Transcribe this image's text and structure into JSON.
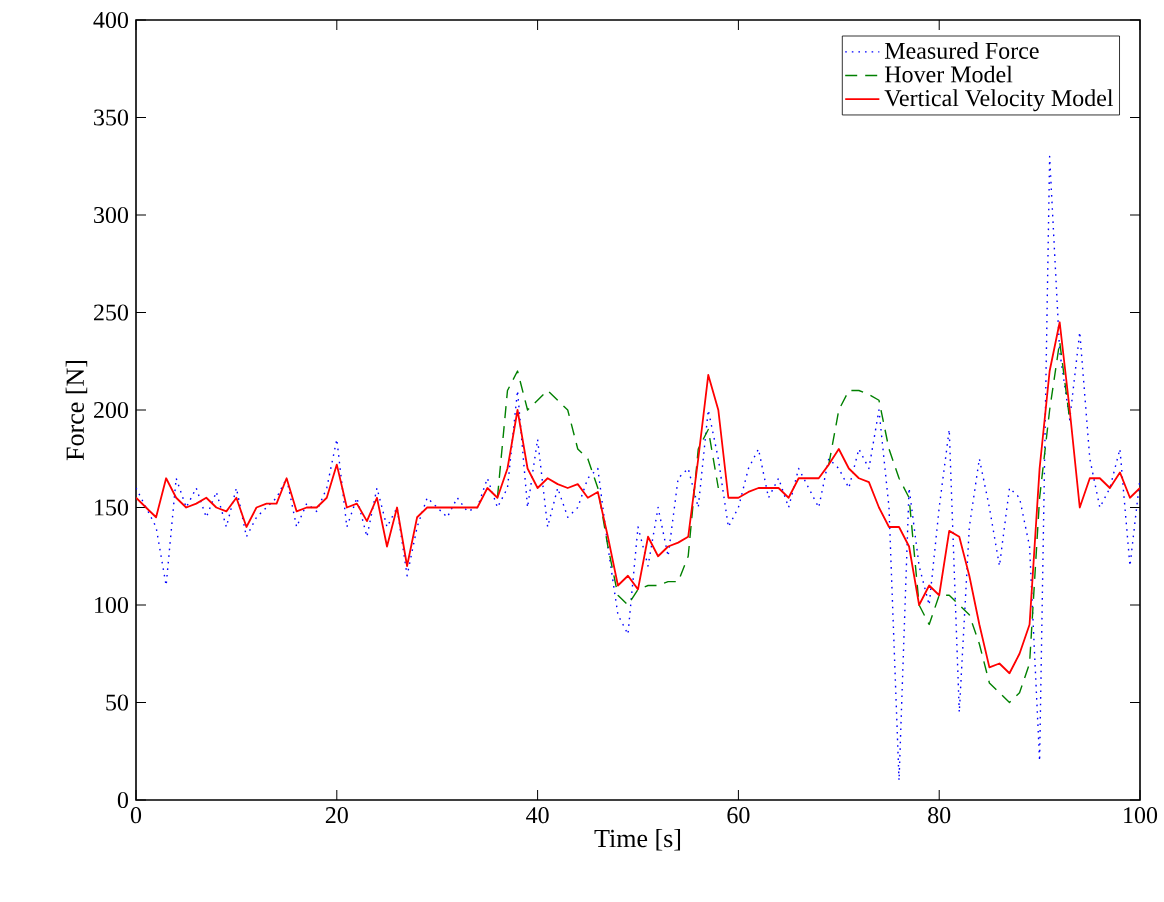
{
  "chart_data": {
    "type": "line",
    "xlabel": "Time [s]",
    "ylabel": "Force [N]",
    "xlim": [
      0,
      100
    ],
    "ylim": [
      0,
      400
    ],
    "xticks": [
      0,
      20,
      40,
      60,
      80,
      100
    ],
    "yticks": [
      0,
      50,
      100,
      150,
      200,
      250,
      300,
      350,
      400
    ],
    "grid": false,
    "legend": "top right",
    "x": [
      0,
      1,
      2,
      3,
      4,
      5,
      6,
      7,
      8,
      9,
      10,
      11,
      12,
      13,
      14,
      15,
      16,
      17,
      18,
      19,
      20,
      21,
      22,
      23,
      24,
      25,
      26,
      27,
      28,
      29,
      30,
      31,
      32,
      33,
      34,
      35,
      36,
      37,
      38,
      39,
      40,
      41,
      42,
      43,
      44,
      45,
      46,
      47,
      48,
      49,
      50,
      51,
      52,
      53,
      54,
      55,
      56,
      57,
      58,
      59,
      60,
      61,
      62,
      63,
      64,
      65,
      66,
      67,
      68,
      69,
      70,
      71,
      72,
      73,
      74,
      75,
      76,
      77,
      78,
      79,
      80,
      81,
      82,
      83,
      84,
      85,
      86,
      87,
      88,
      89,
      90,
      91,
      92,
      93,
      94,
      95,
      96,
      97,
      98,
      99,
      100
    ],
    "series": [
      {
        "name": "Measured Force",
        "color": "#0000ff",
        "line_style": "dotted",
        "values": [
          160,
          150,
          140,
          110,
          165,
          150,
          160,
          145,
          158,
          140,
          160,
          135,
          145,
          150,
          155,
          165,
          140,
          152,
          148,
          160,
          185,
          140,
          155,
          135,
          160,
          140,
          150,
          115,
          140,
          155,
          150,
          145,
          155,
          148,
          150,
          165,
          150,
          160,
          210,
          150,
          185,
          140,
          160,
          145,
          150,
          165,
          170,
          130,
          95,
          85,
          140,
          120,
          150,
          125,
          165,
          170,
          150,
          200,
          175,
          140,
          150,
          170,
          180,
          155,
          165,
          150,
          170,
          160,
          150,
          175,
          170,
          160,
          180,
          170,
          200,
          150,
          10,
          160,
          120,
          100,
          150,
          190,
          45,
          140,
          175,
          150,
          120,
          160,
          155,
          130,
          20,
          330,
          230,
          195,
          240,
          175,
          150,
          160,
          180,
          120,
          165
        ]
      },
      {
        "name": "Hover Model",
        "color": "#008000",
        "line_style": "dashed",
        "values": [
          null,
          null,
          null,
          null,
          null,
          null,
          null,
          null,
          null,
          null,
          null,
          null,
          null,
          null,
          null,
          null,
          null,
          null,
          null,
          null,
          null,
          null,
          null,
          null,
          null,
          null,
          null,
          null,
          null,
          null,
          null,
          null,
          null,
          null,
          null,
          null,
          155,
          210,
          220,
          200,
          205,
          210,
          205,
          200,
          180,
          175,
          160,
          130,
          105,
          100,
          108,
          110,
          110,
          112,
          112,
          125,
          180,
          190,
          160,
          null,
          null,
          null,
          null,
          null,
          null,
          null,
          null,
          null,
          null,
          172,
          200,
          210,
          210,
          208,
          205,
          180,
          165,
          155,
          100,
          90,
          105,
          105,
          100,
          95,
          80,
          60,
          55,
          50,
          55,
          70,
          155,
          200,
          235,
          195,
          null,
          null,
          null,
          null,
          null,
          null,
          null
        ]
      },
      {
        "name": "Vertical Velocity Model",
        "color": "#ff0000",
        "line_style": "solid",
        "values": [
          155,
          150,
          145,
          165,
          155,
          150,
          152,
          155,
          150,
          148,
          155,
          140,
          150,
          152,
          152,
          165,
          148,
          150,
          150,
          155,
          172,
          150,
          152,
          143,
          155,
          130,
          150,
          120,
          145,
          150,
          150,
          150,
          150,
          150,
          150,
          160,
          155,
          170,
          200,
          170,
          160,
          165,
          162,
          160,
          162,
          155,
          158,
          135,
          110,
          115,
          108,
          135,
          125,
          130,
          132,
          135,
          175,
          218,
          200,
          155,
          155,
          158,
          160,
          160,
          160,
          155,
          165,
          165,
          165,
          172,
          180,
          170,
          165,
          163,
          150,
          140,
          140,
          130,
          100,
          110,
          105,
          138,
          135,
          115,
          90,
          68,
          70,
          65,
          75,
          90,
          170,
          220,
          245,
          200,
          150,
          165,
          165,
          160,
          168,
          155,
          160
        ]
      }
    ]
  }
}
